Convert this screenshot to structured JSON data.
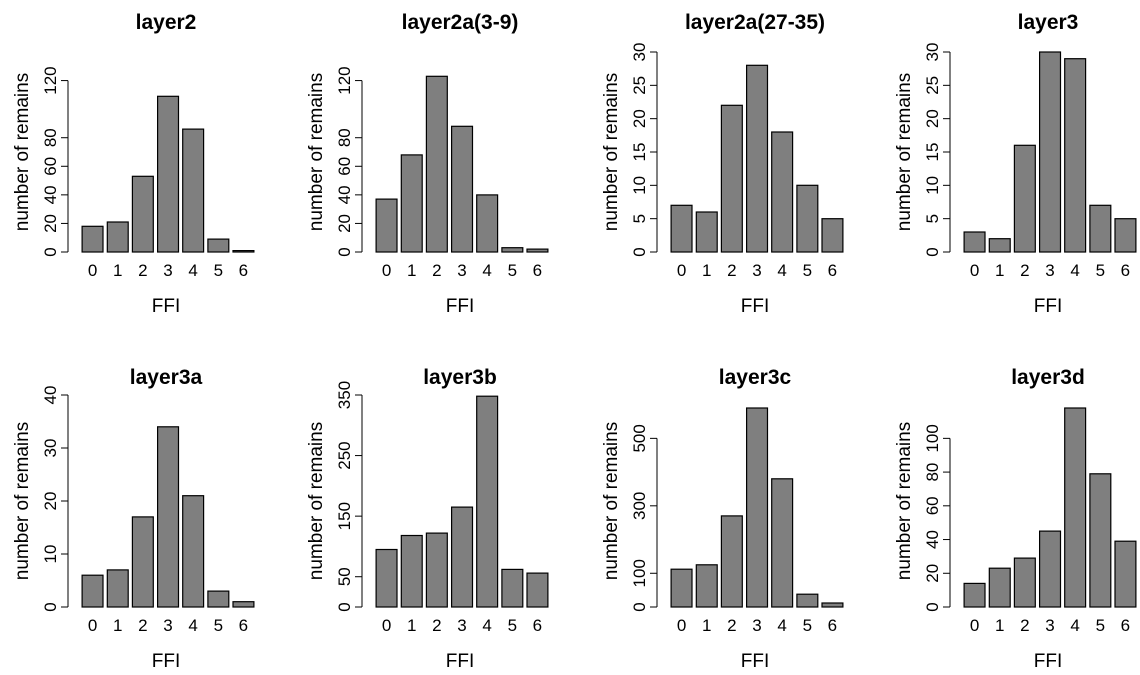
{
  "chart_data": [
    {
      "type": "bar",
      "title": "layer2",
      "xlabel": "FFI",
      "ylabel": "number of remains",
      "categories": [
        "0",
        "1",
        "2",
        "3",
        "4",
        "5",
        "6"
      ],
      "values": [
        18,
        21,
        53,
        109,
        86,
        9,
        1
      ],
      "ylim": [
        0,
        140
      ],
      "yticks": [
        0,
        20,
        40,
        60,
        80,
        120
      ]
    },
    {
      "type": "bar",
      "title": "layer2a(3-9)",
      "xlabel": "FFI",
      "ylabel": "number of remains",
      "categories": [
        "0",
        "1",
        "2",
        "3",
        "4",
        "5",
        "6"
      ],
      "values": [
        37,
        68,
        123,
        88,
        40,
        3,
        2
      ],
      "ylim": [
        0,
        140
      ],
      "yticks": [
        0,
        20,
        40,
        60,
        80,
        120
      ]
    },
    {
      "type": "bar",
      "title": "layer2a(27-35)",
      "xlabel": "FFI",
      "ylabel": "number of remains",
      "categories": [
        "0",
        "1",
        "2",
        "3",
        "4",
        "5",
        "6"
      ],
      "values": [
        7,
        6,
        22,
        28,
        18,
        10,
        5
      ],
      "ylim": [
        0,
        30
      ],
      "yticks": [
        0,
        5,
        10,
        15,
        20,
        25,
        30
      ]
    },
    {
      "type": "bar",
      "title": "layer3",
      "xlabel": "FFI",
      "ylabel": "number of remains",
      "categories": [
        "0",
        "1",
        "2",
        "3",
        "4",
        "5",
        "6"
      ],
      "values": [
        3,
        2,
        16,
        30,
        29,
        7,
        5
      ],
      "ylim": [
        0,
        30
      ],
      "yticks": [
        0,
        5,
        10,
        15,
        20,
        25,
        30
      ]
    },
    {
      "type": "bar",
      "title": "layer3a",
      "xlabel": "FFI",
      "ylabel": "number of remains",
      "categories": [
        "0",
        "1",
        "2",
        "3",
        "4",
        "5",
        "6"
      ],
      "values": [
        6,
        7,
        17,
        34,
        21,
        3,
        1
      ],
      "ylim": [
        0,
        40
      ],
      "yticks": [
        0,
        10,
        20,
        30,
        40
      ]
    },
    {
      "type": "bar",
      "title": "layer3b",
      "xlabel": "FFI",
      "ylabel": "number of remains",
      "categories": [
        "0",
        "1",
        "2",
        "3",
        "4",
        "5",
        "6"
      ],
      "values": [
        95,
        118,
        122,
        165,
        348,
        62,
        56
      ],
      "ylim": [
        0,
        350
      ],
      "yticks": [
        0,
        50,
        150,
        250,
        350
      ]
    },
    {
      "type": "bar",
      "title": "layer3c",
      "xlabel": "FFI",
      "ylabel": "number of remains",
      "categories": [
        "0",
        "1",
        "2",
        "3",
        "4",
        "5",
        "6"
      ],
      "values": [
        112,
        125,
        270,
        590,
        380,
        38,
        12
      ],
      "ylim": [
        0,
        590
      ],
      "yticks": [
        0,
        100,
        300,
        500
      ]
    },
    {
      "type": "bar",
      "title": "layer3d",
      "xlabel": "FFI",
      "ylabel": "number of remains",
      "categories": [
        "0",
        "1",
        "2",
        "3",
        "4",
        "5",
        "6"
      ],
      "values": [
        14,
        23,
        29,
        45,
        118,
        79,
        39
      ],
      "ylim": [
        0,
        118
      ],
      "yticks": [
        0,
        20,
        40,
        60,
        80,
        100
      ]
    }
  ]
}
